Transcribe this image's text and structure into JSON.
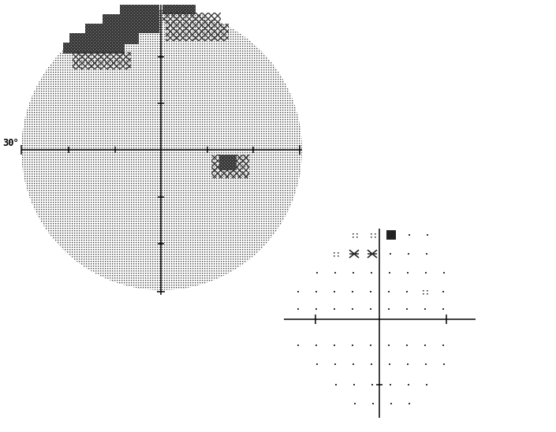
{
  "field_plot": {
    "eccentricity_label": "30°",
    "colors": {
      "ink": "#000000",
      "dot": "#333333",
      "dense": "#3a3a3a",
      "mid": "#777777"
    }
  },
  "defect_symbols": [
    "dense-block-symbol",
    "crosshatch-symbol",
    "dot-symbol"
  ],
  "sparse_grid": {
    "rows": [
      [
        "::",
        "::",
        "dense",
        "·",
        "·"
      ],
      [
        "::",
        "cross",
        "cross",
        "·",
        "·",
        "·"
      ],
      [
        "·",
        "·",
        "·",
        "·",
        "·",
        "·",
        "·",
        "·"
      ],
      [
        "·",
        "·",
        "·",
        "·",
        "·",
        "·",
        "·",
        "::",
        "·"
      ],
      [
        "·",
        "·",
        "·",
        "·",
        "·",
        "·",
        "·",
        "·",
        "·"
      ],
      [
        "·",
        "·",
        "·",
        "·",
        "·",
        "·",
        "·",
        "·",
        "·"
      ],
      [
        "·",
        "·",
        "·",
        "·",
        "·",
        "·",
        "·",
        "·"
      ],
      [
        "·",
        "·",
        "·",
        "·",
        "·",
        "·"
      ],
      [
        "·",
        "·",
        "·",
        "·"
      ]
    ]
  }
}
